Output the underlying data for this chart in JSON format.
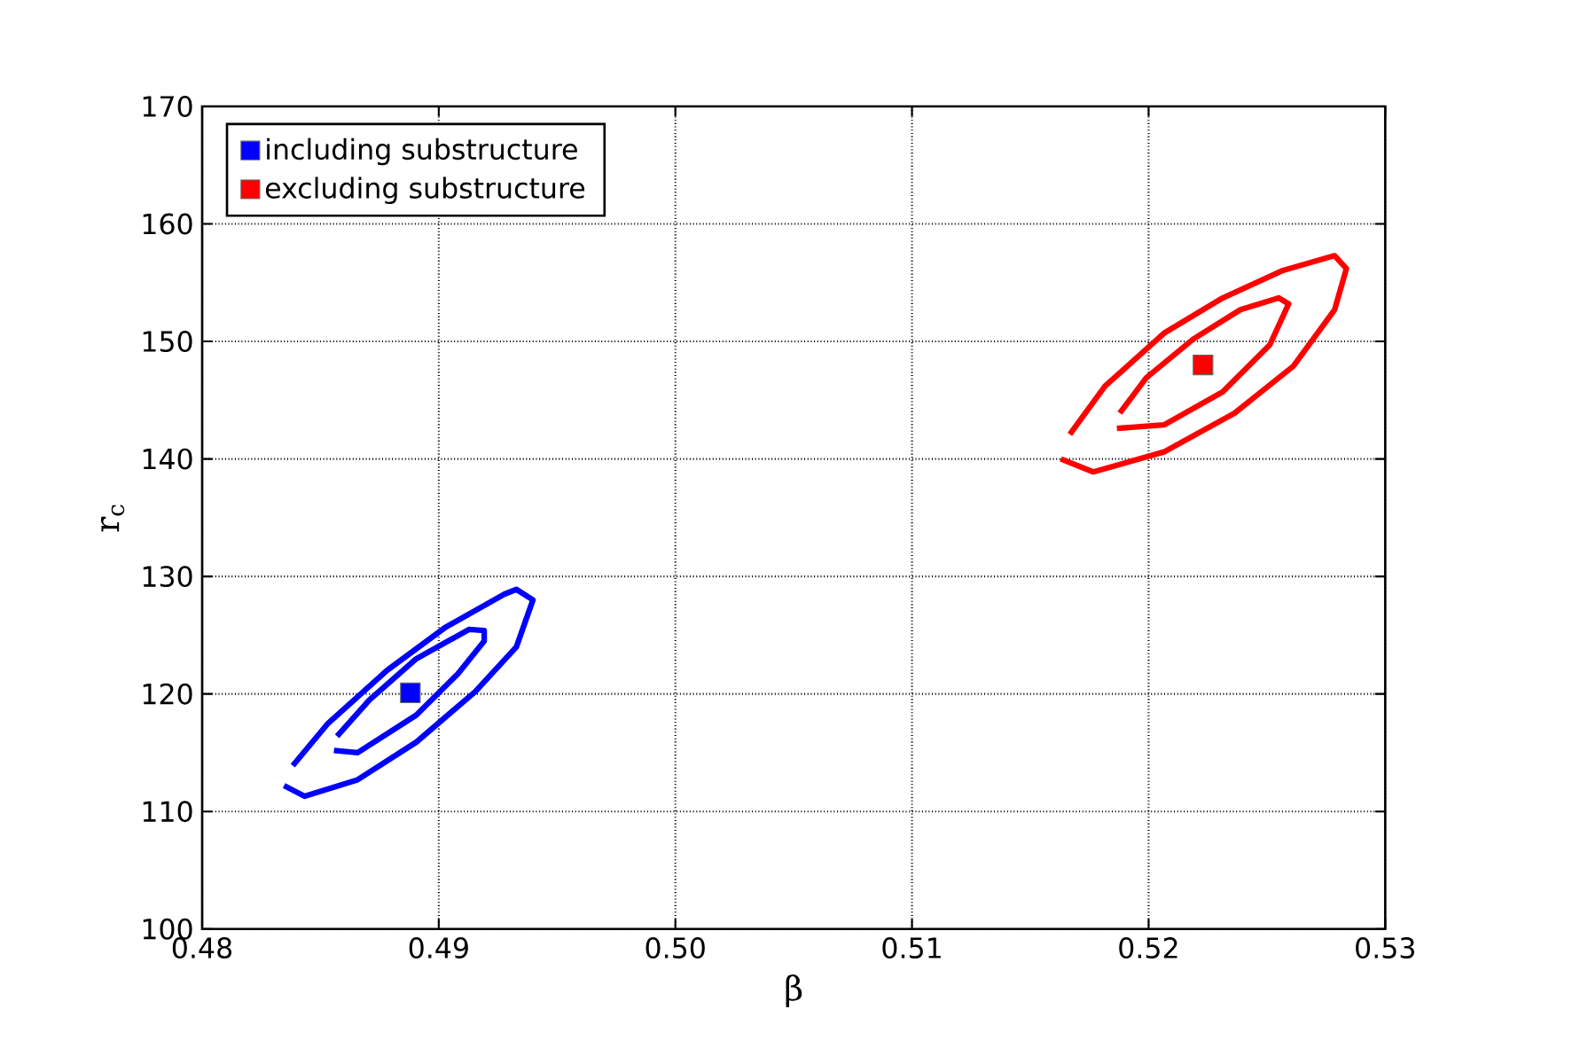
{
  "chart_data": {
    "type": "line",
    "xlabel": "β",
    "ylabel": "r$_{c}$",
    "xlim": [
      0.48,
      0.53
    ],
    "ylim": [
      100,
      170
    ],
    "xticks": [
      0.48,
      0.49,
      {
        "value": 0.5,
        "label": "0.50"
      },
      0.51,
      0.52,
      0.53
    ],
    "yticks": [
      100,
      110,
      120,
      130,
      140,
      150,
      160,
      170
    ],
    "grid": true,
    "legend": "top left",
    "series": [
      {
        "marker": "none",
        "color": "#0000ff",
        "x": [
          0.48346,
          0.48433,
          0.48657,
          0.48905,
          0.49154,
          0.49328,
          0.49398,
          0.49328,
          0.49278,
          0.4903,
          0.48781,
          0.48532,
          0.48383
        ],
        "values": [
          112.2,
          111.3,
          112.7,
          115.9,
          120.2,
          124.0,
          128.0,
          128.9,
          128.5,
          125.7,
          122.0,
          117.5,
          113.9
        ]
      },
      {
        "marker": "none",
        "color": "#0000ff",
        "x": [
          0.48557,
          0.48657,
          0.48905,
          0.4908,
          0.49192,
          0.49192,
          0.49129,
          0.48905,
          0.48707,
          0.4857
        ],
        "values": [
          115.2,
          115.0,
          118.2,
          121.7,
          124.5,
          125.4,
          125.5,
          123.0,
          119.5,
          116.4
        ]
      },
      {
        "marker": "none",
        "color": "#ff0000",
        "x": [
          0.51629,
          0.51766,
          0.52065,
          0.52363,
          0.52612,
          0.52786,
          0.52836,
          0.52786,
          0.52562,
          0.52313,
          0.52065,
          0.51816,
          0.51667
        ],
        "values": [
          140.0,
          138.9,
          140.6,
          143.9,
          147.9,
          152.7,
          156.2,
          157.3,
          156.0,
          153.7,
          150.7,
          146.2,
          142.1
        ]
      },
      {
        "marker": "none",
        "color": "#ff0000",
        "x": [
          0.51866,
          0.52065,
          0.52313,
          0.52512,
          0.52592,
          0.5255,
          0.52388,
          0.52189,
          0.5199,
          0.51878
        ],
        "values": [
          142.6,
          142.9,
          145.7,
          149.7,
          153.2,
          153.7,
          152.7,
          150.2,
          146.9,
          143.9
        ]
      },
      {
        "type": "scatter",
        "marker": "square",
        "name": "including substructure",
        "color": "#0000ff",
        "x": [
          0.4888
        ],
        "values": [
          120.1
        ]
      },
      {
        "type": "scatter",
        "marker": "square",
        "name": "excluding substructure",
        "color": "#ff0000",
        "x": [
          0.5223
        ],
        "values": [
          148.0
        ]
      }
    ]
  }
}
